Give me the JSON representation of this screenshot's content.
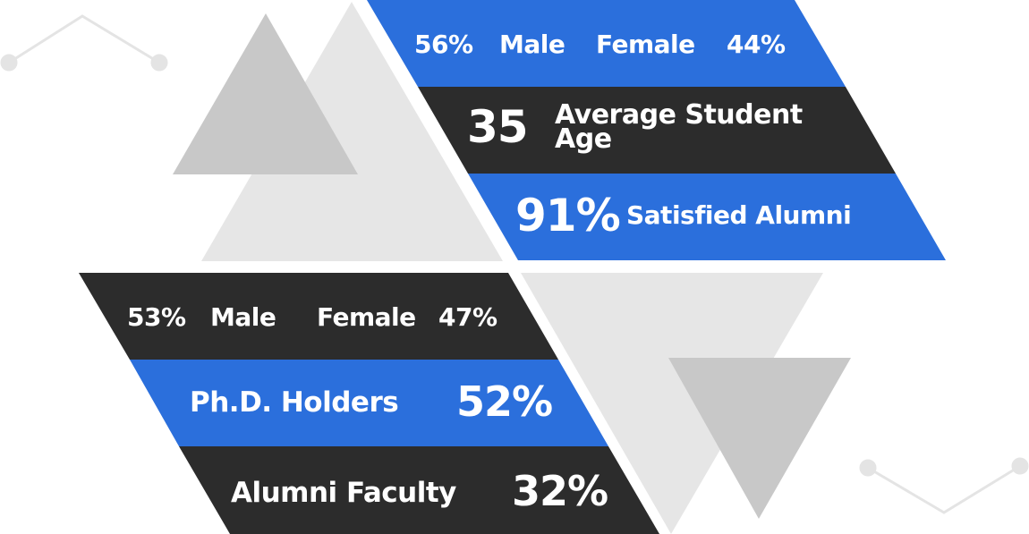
{
  "colors": {
    "blue": "#2b6fdc",
    "dark": "#2c2c2c",
    "grey_light": "#e6e6e6",
    "grey_mid": "#c8c8c8",
    "line": "#e4e4e4"
  },
  "top": {
    "gender": {
      "male_value": "56%",
      "male_label": "Male",
      "female_label": "Female",
      "female_value": "44%"
    },
    "age": {
      "value": "35",
      "label_line1": "Average Student",
      "label_line2": "Age"
    },
    "satisfied": {
      "value": "91%",
      "label": "Satisfied Alumni"
    }
  },
  "bottom": {
    "gender": {
      "male_value": "53%",
      "male_label": "Male",
      "female_label": "Female",
      "female_value": "47%"
    },
    "phd": {
      "label": "Ph.D. Holders",
      "value": "52%"
    },
    "faculty": {
      "label": "Alumni Faculty",
      "value": "32%"
    }
  }
}
